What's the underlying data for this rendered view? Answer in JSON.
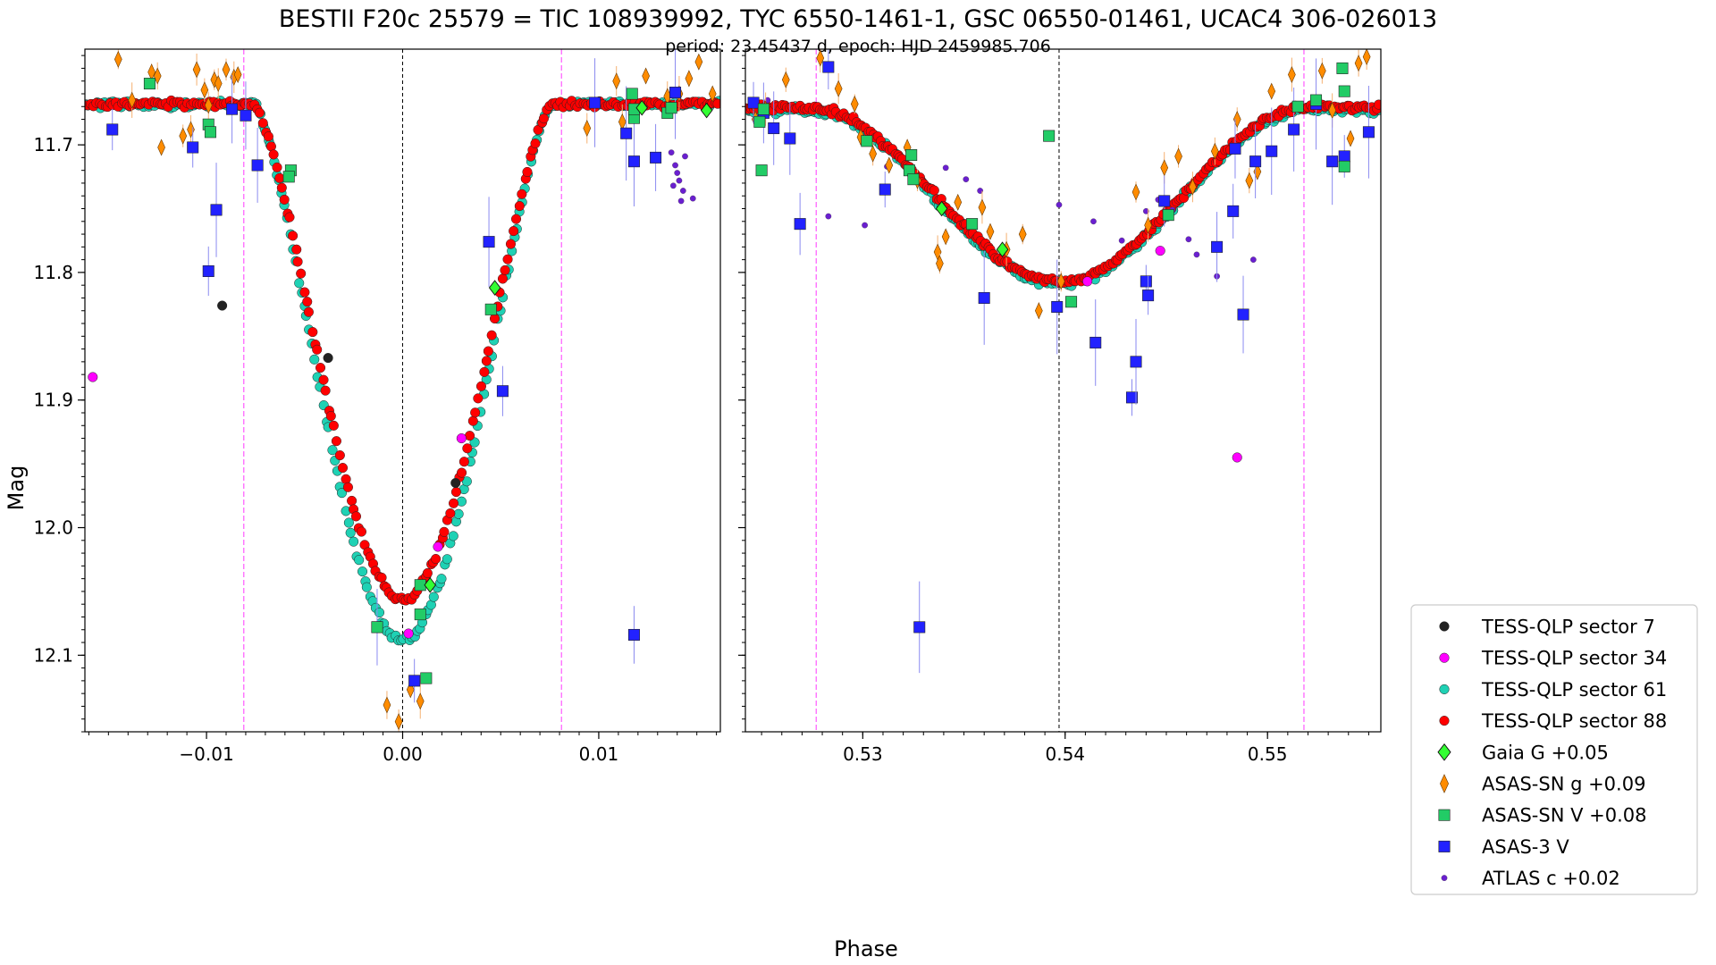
{
  "title": "BESTII F20c 25579 = TIC 108939992, TYC 6550-1461-1, GSC 06550-01461, UCAC4 306-026013",
  "subtitle": "period: 23.45437 d, epoch: HJD 2459985.706",
  "colors": {
    "sector7": "#222222",
    "sector34": "#ff00ff",
    "sector61": "#1fd1b4",
    "sector88": "#ff0000",
    "gaia": "#33ff33",
    "asassn_g": "#ff8c00",
    "asassn_v": "#22cc66",
    "asas3": "#2222ff",
    "atlas": "#6a1fd0",
    "eclipse_line": "#ff66ff",
    "center_line": "#000000"
  },
  "chart_data": [
    {
      "type": "scatter",
      "panel": "left",
      "xlabel": "Phase",
      "ylabel": "Mag",
      "xlim": [
        -0.0162,
        0.0162
      ],
      "ylim": [
        12.16,
        11.625
      ],
      "x_ticks": [
        -0.01,
        0.0,
        0.01
      ],
      "x_tick_labels": [
        "−0.01",
        "0.00",
        "0.01"
      ],
      "y_ticks": [
        11.7,
        11.8,
        11.9,
        12.0,
        12.1
      ],
      "y_tick_labels": [
        "11.7",
        "11.8",
        "11.9",
        "12.0",
        "12.1"
      ],
      "center_line": 0.0,
      "eclipse_lines": [
        -0.0081,
        0.0081
      ],
      "series": [
        {
          "name": "TESS-QLP sector 7",
          "key": "sector7",
          "points": [
            [
              -0.0092,
              11.826
            ],
            [
              -0.0038,
              11.867
            ],
            [
              0.0027,
              11.965
            ]
          ]
        },
        {
          "name": "TESS-QLP sector 34",
          "key": "sector34",
          "points": [
            [
              -0.0158,
              11.882
            ],
            [
              0.0003,
              12.083
            ],
            [
              0.0018,
              12.015
            ],
            [
              0.003,
              11.93
            ]
          ]
        },
        {
          "name": "Gaia G +0.05",
          "key": "gaia",
          "points": [
            [
              0.0014,
              12.045
            ],
            [
              0.0047,
              11.812
            ],
            [
              0.0122,
              11.671
            ],
            [
              0.0155,
              11.673
            ]
          ]
        },
        {
          "name": "ASAS-SN V +0.08",
          "key": "asassn_v",
          "points": [
            [
              -0.0129,
              11.652
            ],
            [
              -0.0099,
              11.684
            ],
            [
              -0.0098,
              11.69
            ],
            [
              -0.0057,
              11.72
            ],
            [
              -0.0058,
              11.725
            ],
            [
              -0.0013,
              12.078
            ],
            [
              0.0009,
              12.045
            ],
            [
              0.0009,
              12.068
            ],
            [
              0.0012,
              12.118
            ],
            [
              0.0045,
              11.829
            ],
            [
              0.0118,
              11.679
            ],
            [
              0.0118,
              11.672
            ],
            [
              0.0135,
              11.675
            ],
            [
              0.0117,
              11.66
            ],
            [
              0.0137,
              11.671
            ]
          ]
        },
        {
          "name": "ASAS-3 V",
          "key": "asas3",
          "points": [
            [
              -0.0148,
              11.688
            ],
            [
              -0.0107,
              11.702
            ],
            [
              -0.0099,
              11.799
            ],
            [
              -0.0095,
              11.751
            ],
            [
              -0.0087,
              11.672
            ],
            [
              -0.008,
              11.677
            ],
            [
              -0.0074,
              11.716
            ],
            [
              -0.0013,
              12.078
            ],
            [
              0.0006,
              12.12
            ],
            [
              0.0044,
              11.776
            ],
            [
              0.0051,
              11.893
            ],
            [
              0.0098,
              11.667
            ],
            [
              0.0114,
              11.691
            ],
            [
              0.0118,
              11.713
            ],
            [
              0.0118,
              12.084
            ],
            [
              0.0129,
              11.71
            ],
            [
              0.0139,
              11.659
            ]
          ]
        },
        {
          "name": "ATLAS c +0.02",
          "key": "atlas",
          "points": [
            [
              0.0138,
              11.732
            ],
            [
              0.0139,
              11.716
            ],
            [
              0.014,
              11.722
            ],
            [
              0.0141,
              11.728
            ],
            [
              0.0143,
              11.736
            ],
            [
              0.0142,
              11.744
            ],
            [
              0.0144,
              11.709
            ],
            [
              0.0137,
              11.706
            ],
            [
              0.0148,
              11.742
            ]
          ]
        },
        {
          "name": "ASAS-SN g +0.09",
          "key": "asassn_g",
          "points": [
            [
              -0.0145,
              11.633
            ],
            [
              -0.0138,
              11.665
            ],
            [
              -0.0128,
              11.643
            ],
            [
              -0.0125,
              11.646
            ],
            [
              -0.0123,
              11.702
            ],
            [
              -0.0112,
              11.693
            ],
            [
              -0.0108,
              11.688
            ],
            [
              -0.0105,
              11.641
            ],
            [
              -0.0101,
              11.657
            ],
            [
              -0.0099,
              11.669
            ],
            [
              -0.0096,
              11.649
            ],
            [
              -0.0094,
              11.652
            ],
            [
              -0.009,
              11.641
            ],
            [
              -0.0086,
              11.647
            ],
            [
              -0.0084,
              11.645
            ],
            [
              -0.0008,
              12.139
            ],
            [
              -0.0002,
              12.152
            ],
            [
              0.0004,
              12.127
            ],
            [
              0.0009,
              12.136
            ],
            [
              0.0094,
              11.687
            ],
            [
              0.0109,
              11.65
            ],
            [
              0.0112,
              11.682
            ],
            [
              0.0124,
              11.646
            ],
            [
              0.0135,
              11.662
            ],
            [
              0.0141,
              11.66
            ],
            [
              0.0146,
              11.648
            ],
            [
              0.0151,
              11.635
            ],
            [
              0.0158,
              11.66
            ]
          ]
        }
      ]
    },
    {
      "type": "scatter",
      "panel": "right",
      "xlabel": "",
      "ylabel": "",
      "xlim": [
        0.5242,
        0.5556
      ],
      "ylim": [
        12.16,
        11.625
      ],
      "x_ticks": [
        0.53,
        0.54,
        0.55
      ],
      "x_tick_labels": [
        "0.53",
        "0.54",
        "0.55"
      ],
      "center_line": 0.5397,
      "eclipse_lines": [
        0.5277,
        0.5518
      ],
      "series": [
        {
          "name": "TESS-QLP sector 34",
          "key": "sector34",
          "points": [
            [
              0.5485,
              11.945
            ],
            [
              0.5411,
              11.807
            ],
            [
              0.5447,
              11.783
            ]
          ]
        },
        {
          "name": "Gaia G +0.05",
          "key": "gaia",
          "points": [
            [
              0.5339,
              11.75
            ],
            [
              0.5369,
              11.782
            ]
          ]
        },
        {
          "name": "ASAS-SN V +0.08",
          "key": "asassn_v",
          "points": [
            [
              0.5249,
              11.682
            ],
            [
              0.525,
              11.72
            ],
            [
              0.5251,
              11.672
            ],
            [
              0.5324,
              11.708
            ],
            [
              0.5323,
              11.72
            ],
            [
              0.5325,
              11.727
            ],
            [
              0.5302,
              11.697
            ],
            [
              0.5354,
              11.762
            ],
            [
              0.5392,
              11.693
            ],
            [
              0.5403,
              11.823
            ],
            [
              0.5451,
              11.755
            ],
            [
              0.5515,
              11.67
            ],
            [
              0.5524,
              11.665
            ],
            [
              0.5537,
              11.64
            ],
            [
              0.5538,
              11.658
            ],
            [
              0.5538,
              11.717
            ]
          ]
        },
        {
          "name": "ASAS-3 V",
          "key": "asas3",
          "points": [
            [
              0.5246,
              11.667
            ],
            [
              0.5251,
              11.675
            ],
            [
              0.5256,
              11.687
            ],
            [
              0.5264,
              11.695
            ],
            [
              0.5269,
              11.762
            ],
            [
              0.5283,
              11.639
            ],
            [
              0.5311,
              11.735
            ],
            [
              0.5328,
              12.078
            ],
            [
              0.536,
              11.82
            ],
            [
              0.5396,
              11.827
            ],
            [
              0.5415,
              11.855
            ],
            [
              0.5433,
              11.898
            ],
            [
              0.5435,
              11.87
            ],
            [
              0.544,
              11.807
            ],
            [
              0.5441,
              11.818
            ],
            [
              0.5449,
              11.744
            ],
            [
              0.5475,
              11.78
            ],
            [
              0.5483,
              11.752
            ],
            [
              0.5484,
              11.703
            ],
            [
              0.5488,
              11.833
            ],
            [
              0.5494,
              11.713
            ],
            [
              0.5502,
              11.705
            ],
            [
              0.5513,
              11.688
            ],
            [
              0.5524,
              11.668
            ],
            [
              0.5538,
              11.709
            ],
            [
              0.555,
              11.69
            ],
            [
              0.5532,
              11.713
            ]
          ]
        },
        {
          "name": "ATLAS c +0.02",
          "key": "atlas",
          "points": [
            [
              0.5253,
              11.665
            ],
            [
              0.5283,
              11.756
            ],
            [
              0.5301,
              11.763
            ],
            [
              0.5341,
              11.718
            ],
            [
              0.5358,
              11.736
            ],
            [
              0.5351,
              11.727
            ],
            [
              0.5397,
              11.747
            ],
            [
              0.5414,
              11.76
            ],
            [
              0.5428,
              11.775
            ],
            [
              0.544,
              11.752
            ],
            [
              0.5446,
              11.743
            ],
            [
              0.5453,
              11.751
            ],
            [
              0.5461,
              11.774
            ],
            [
              0.5465,
              11.786
            ],
            [
              0.5475,
              11.803
            ],
            [
              0.5493,
              11.79
            ],
            [
              0.5312,
              11.717
            ]
          ]
        },
        {
          "name": "ASAS-SN g +0.09",
          "key": "asassn_g",
          "points": [
            [
              0.5247,
              11.68
            ],
            [
              0.5252,
              11.672
            ],
            [
              0.5262,
              11.649
            ],
            [
              0.5279,
              11.632
            ],
            [
              0.5288,
              11.656
            ],
            [
              0.5296,
              11.668
            ],
            [
              0.5299,
              11.694
            ],
            [
              0.5305,
              11.707
            ],
            [
              0.5313,
              11.716
            ],
            [
              0.5322,
              11.702
            ],
            [
              0.5327,
              11.728
            ],
            [
              0.5337,
              11.784
            ],
            [
              0.5338,
              11.793
            ],
            [
              0.5341,
              11.772
            ],
            [
              0.5347,
              11.745
            ],
            [
              0.5359,
              11.749
            ],
            [
              0.5363,
              11.768
            ],
            [
              0.5371,
              11.782
            ],
            [
              0.5379,
              11.77
            ],
            [
              0.5387,
              11.83
            ],
            [
              0.5398,
              11.807
            ],
            [
              0.5435,
              11.737
            ],
            [
              0.5441,
              11.763
            ],
            [
              0.5449,
              11.718
            ],
            [
              0.5456,
              11.709
            ],
            [
              0.5463,
              11.733
            ],
            [
              0.5474,
              11.705
            ],
            [
              0.5485,
              11.68
            ],
            [
              0.5491,
              11.728
            ],
            [
              0.5495,
              11.721
            ],
            [
              0.5502,
              11.658
            ],
            [
              0.5512,
              11.645
            ],
            [
              0.5527,
              11.642
            ],
            [
              0.5532,
              11.673
            ],
            [
              0.5541,
              11.695
            ],
            [
              0.5545,
              11.636
            ],
            [
              0.5549,
              11.631
            ]
          ]
        }
      ]
    }
  ],
  "legend": {
    "placement": "lower-right",
    "items": [
      {
        "label": "TESS-QLP sector 7",
        "key": "sector7",
        "marker": "circle"
      },
      {
        "label": "TESS-QLP sector 34",
        "key": "sector34",
        "marker": "circle"
      },
      {
        "label": "TESS-QLP sector 61",
        "key": "sector61",
        "marker": "circle"
      },
      {
        "label": "TESS-QLP sector 88",
        "key": "sector88",
        "marker": "circle"
      },
      {
        "label": "Gaia G +0.05",
        "key": "gaia",
        "marker": "diamond"
      },
      {
        "label": "ASAS-SN g +0.09",
        "key": "asassn_g",
        "marker": "thin-diamond"
      },
      {
        "label": "ASAS-SN V +0.08",
        "key": "asassn_v",
        "marker": "square"
      },
      {
        "label": "ASAS-3 V",
        "key": "asas3",
        "marker": "square"
      },
      {
        "label": "ATLAS c +0.02",
        "key": "atlas",
        "marker": "small-circle"
      }
    ]
  }
}
